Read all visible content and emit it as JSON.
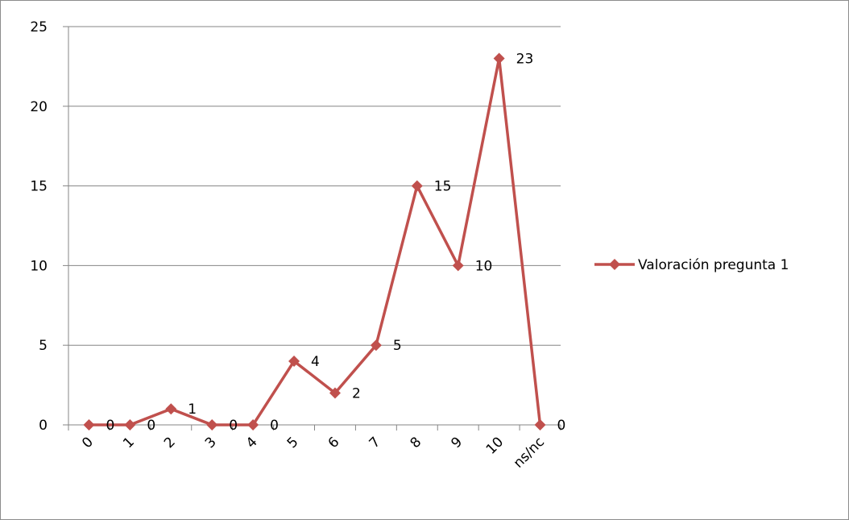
{
  "chart_data": {
    "type": "line",
    "title": "",
    "xlabel": "",
    "ylabel": "",
    "categories": [
      "0",
      "1",
      "2",
      "3",
      "4",
      "5",
      "6",
      "7",
      "8",
      "9",
      "10",
      "ns/nc"
    ],
    "series": [
      {
        "name": "Valoración pregunta 1",
        "values": [
          0,
          0,
          1,
          0,
          0,
          4,
          2,
          5,
          15,
          10,
          23,
          0
        ],
        "color": "#c0504d",
        "marker": "diamond"
      }
    ],
    "ylim": [
      0,
      25
    ],
    "yticks": [
      0,
      5,
      10,
      15,
      20,
      25
    ],
    "grid": "horizontal",
    "legend_position": "right",
    "data_labels": true
  }
}
